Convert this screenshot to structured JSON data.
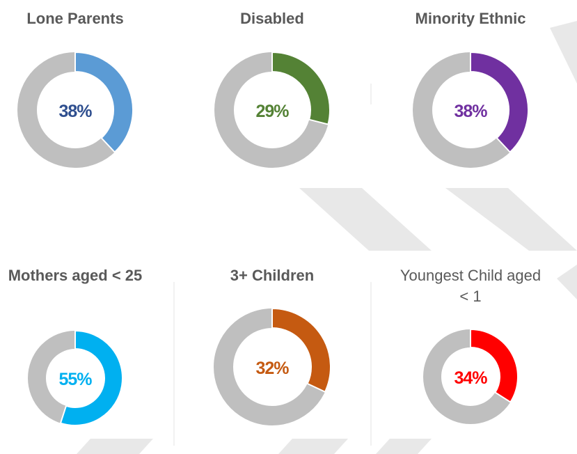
{
  "chart_data": [
    {
      "type": "donut",
      "title": "Lone Parents",
      "values": [
        38
      ],
      "value_labels": [
        "38%"
      ],
      "ylim": [
        0,
        100
      ],
      "color": "#5b9bd5",
      "label_color": "#2f4f8f",
      "track_color": "#bfbfbf",
      "title_bold": true
    },
    {
      "type": "donut",
      "title": "Disabled",
      "values": [
        29
      ],
      "value_labels": [
        "29%"
      ],
      "ylim": [
        0,
        100
      ],
      "color": "#548235",
      "label_color": "#548235",
      "track_color": "#bfbfbf",
      "title_bold": true
    },
    {
      "type": "donut",
      "title": "Minority Ethnic",
      "values": [
        38
      ],
      "value_labels": [
        "38%"
      ],
      "ylim": [
        0,
        100
      ],
      "color": "#7030a0",
      "label_color": "#7030a0",
      "track_color": "#bfbfbf",
      "title_bold": true
    },
    {
      "type": "donut",
      "title": "Mothers aged < 25",
      "values": [
        55
      ],
      "value_labels": [
        "55%"
      ],
      "ylim": [
        0,
        100
      ],
      "color": "#00b0f0",
      "label_color": "#00b0f0",
      "track_color": "#bfbfbf",
      "title_bold": true
    },
    {
      "type": "donut",
      "title": "3+ Children",
      "values": [
        32
      ],
      "value_labels": [
        "32%"
      ],
      "ylim": [
        0,
        100
      ],
      "color": "#c55a11",
      "label_color": "#c55a11",
      "track_color": "#bfbfbf",
      "title_bold": true
    },
    {
      "type": "donut",
      "title": "Youngest Child aged < 1",
      "values": [
        34
      ],
      "value_labels": [
        "34%"
      ],
      "ylim": [
        0,
        100
      ],
      "color": "#ff0000",
      "label_color": "#ff0000",
      "track_color": "#bfbfbf",
      "title_bold": false
    }
  ]
}
